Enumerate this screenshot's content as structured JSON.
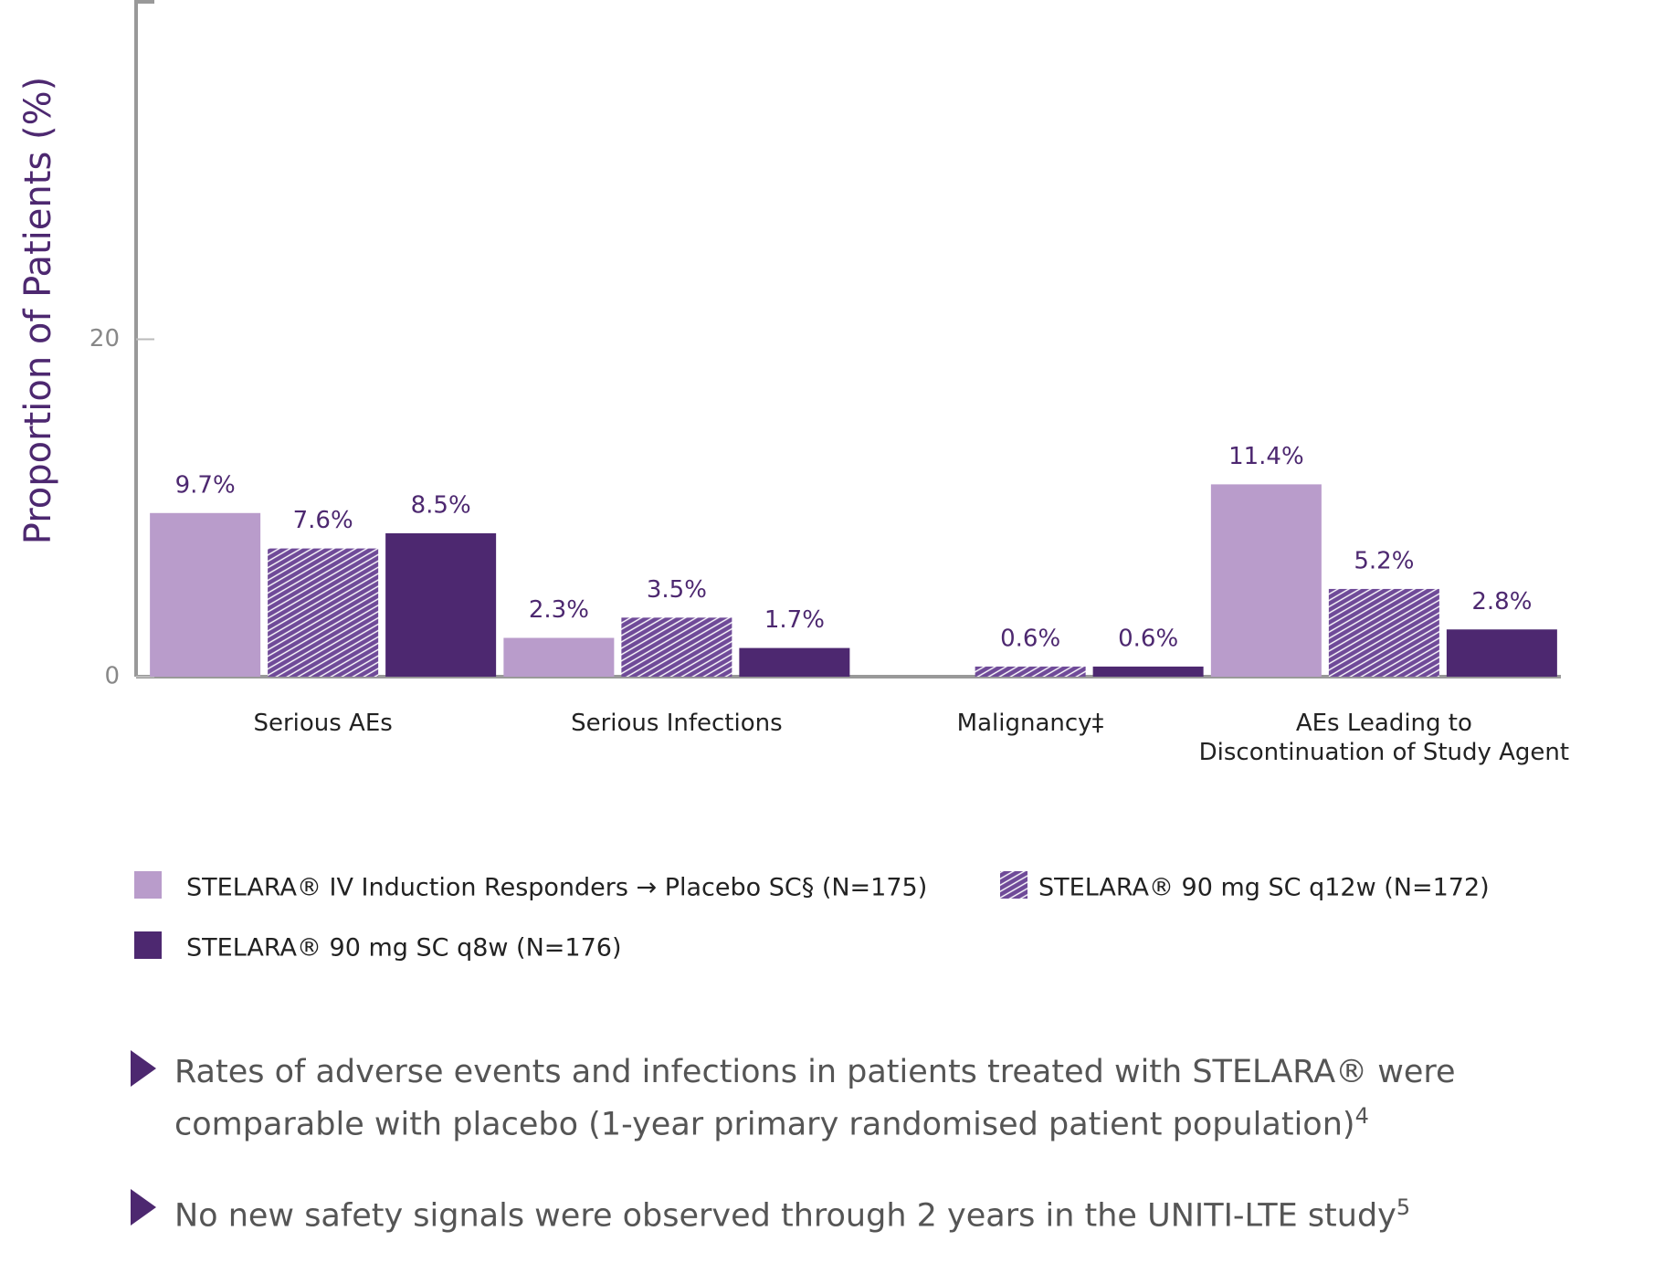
{
  "chart_data": {
    "type": "bar",
    "y_label": "Proportion of Patients (%)",
    "categories": [
      "Serious AEs",
      "Serious Infections",
      "Malignancy‡",
      "AEs Leading to\nDiscontinuation of Study Agent"
    ],
    "series": [
      {
        "name": "STELARA® IV Induction Responders → Placebo SC§ (N=175)",
        "color": "#b99ccb",
        "values": [
          9.7,
          2.3,
          null,
          11.4
        ],
        "value_labels": [
          "9.7%",
          "2.3%",
          null,
          "11.4%"
        ]
      },
      {
        "name": "STELARA® 90 mg SC q12w (N=172)",
        "color": "#6f4a98",
        "hatch": true,
        "values": [
          7.6,
          3.5,
          0.6,
          5.2
        ],
        "value_labels": [
          "7.6%",
          "3.5%",
          "0.6%",
          "5.2%"
        ]
      },
      {
        "name": "STELARA® 90 mg SC q8w (N=176)",
        "color": "#4d2870",
        "values": [
          8.5,
          1.7,
          0.6,
          2.8
        ],
        "value_labels": [
          "8.5%",
          "1.7%",
          "0.6%",
          "2.8%"
        ]
      }
    ],
    "ylim": [
      0,
      40
    ],
    "yticks": [
      0,
      20
    ],
    "grid": false
  },
  "notes": [
    {
      "text": "Rates of adverse events and infections in patients treated with STELARA® were comparable with placebo (1-year primary randomised patient population)",
      "ref": "4"
    },
    {
      "text": "No new safety signals were observed through 2 years in the UNITI-LTE study",
      "ref": "5"
    }
  ]
}
